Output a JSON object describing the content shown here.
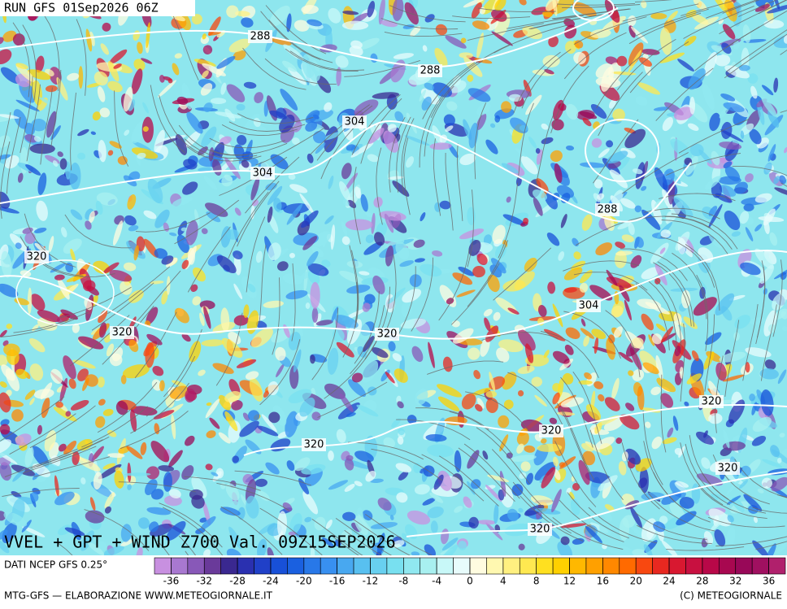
{
  "header": {
    "run": "RUN GFS 01Sep2026 06Z"
  },
  "map": {
    "title": "VVEL + GPT + WIND Z700 Val. 09Z15SEP2026",
    "contour_labels": [
      "288",
      "288",
      "304",
      "304",
      "288",
      "320",
      "320",
      "304",
      "320",
      "320",
      "320",
      "320",
      "320",
      "320"
    ]
  },
  "colorbar": {
    "source": "DATI NCEP GFS 0.25°",
    "range": [
      -38,
      38
    ],
    "ticks": [
      -36,
      -32,
      -28,
      -24,
      -20,
      -16,
      -12,
      -8,
      -4,
      0,
      4,
      8,
      12,
      16,
      20,
      24,
      28,
      32,
      36
    ],
    "colors": [
      "#c890e0",
      "#a878d0",
      "#8858b8",
      "#6a3a9a",
      "#3a2890",
      "#2a30b0",
      "#2040c8",
      "#1850d8",
      "#1a60e0",
      "#2878e8",
      "#3890f0",
      "#48a8f0",
      "#58c0f0",
      "#68d0f0",
      "#78e0f0",
      "#90e8f0",
      "#a8f0f0",
      "#c8f8f8",
      "#e8fcfc",
      "#fffce0",
      "#fff8b0",
      "#fff080",
      "#ffe850",
      "#ffe020",
      "#ffd000",
      "#ffb800",
      "#ffa000",
      "#ff8800",
      "#ff6a00",
      "#f84810",
      "#e82820",
      "#d81830",
      "#c81040",
      "#b80848",
      "#a80850",
      "#980858",
      "#a01060",
      "#b0206c"
    ]
  },
  "footer": {
    "left": "MTG-GFS — ELABORAZIONE WWW.METEOGIORNALE.IT",
    "right": "(C) METEOGIORNALE"
  }
}
